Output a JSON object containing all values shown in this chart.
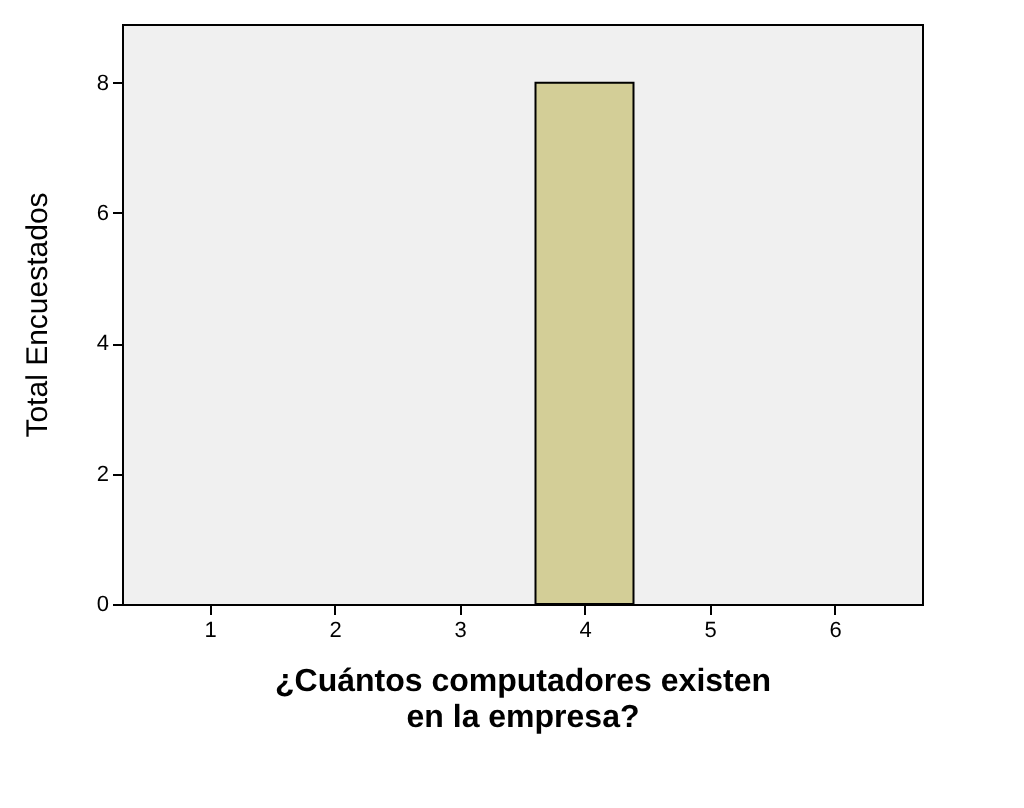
{
  "chart_data": {
    "type": "bar",
    "xlabel": "¿Cuántos computadores existen\nen la empresa?",
    "ylabel": "Total Encuestados",
    "x": [
      4
    ],
    "values": [
      8
    ],
    "color": "#d3ce97",
    "xlim": [
      0.3,
      6.7
    ],
    "xticks": [
      1,
      2,
      3,
      4,
      5,
      6
    ],
    "ylim": [
      0,
      8.9
    ],
    "yticks": [
      0,
      2,
      4,
      6,
      8
    ],
    "grid": false
  }
}
